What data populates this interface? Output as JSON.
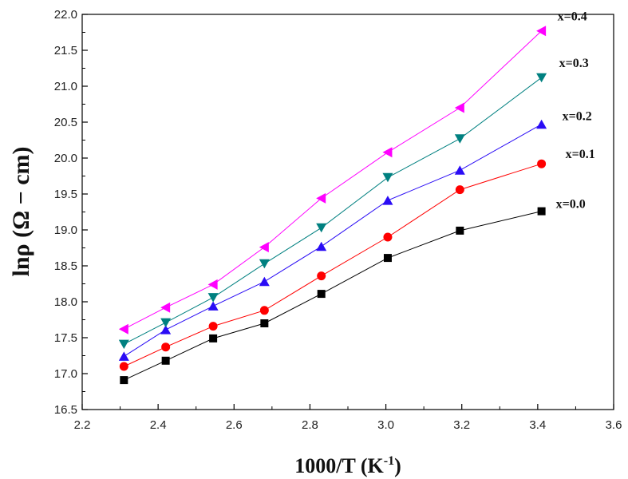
{
  "chart_data": {
    "type": "line",
    "title": "",
    "xlabel": "1000/T (K⁻¹)",
    "xlabel_main": "1000/T (K",
    "xlabel_sup": "-1",
    "xlabel_close": ")",
    "ylabel": "lnρ (Ω − cm)",
    "xlim": [
      2.2,
      3.6
    ],
    "ylim": [
      16.5,
      22.0
    ],
    "x_ticks": [
      "2.2",
      "2.4",
      "2.6",
      "2.8",
      "3.0",
      "3.2",
      "3.4",
      "3.6"
    ],
    "y_ticks": [
      "16.5",
      "17.0",
      "17.5",
      "18.0",
      "18.5",
      "19.0",
      "19.5",
      "20.0",
      "20.5",
      "21.0",
      "21.5",
      "22.0"
    ],
    "x": [
      2.31,
      2.42,
      2.545,
      2.68,
      2.83,
      3.005,
      3.195,
      3.41
    ],
    "series": [
      {
        "name": "x=0.0",
        "marker": "square",
        "color": "#000000",
        "values": [
          16.91,
          17.18,
          17.49,
          17.7,
          18.11,
          18.61,
          18.99,
          19.26
        ]
      },
      {
        "name": "x=0.1",
        "marker": "circle",
        "color": "#ff0000",
        "values": [
          17.1,
          17.37,
          17.66,
          17.88,
          18.36,
          18.9,
          19.56,
          19.92
        ]
      },
      {
        "name": "x=0.2",
        "marker": "triangle-up",
        "color": "#2a0cf5",
        "values": [
          17.24,
          17.61,
          17.94,
          18.28,
          18.77,
          19.41,
          19.83,
          20.47
        ]
      },
      {
        "name": "x=0.3",
        "marker": "triangle-down",
        "color": "#008080",
        "values": [
          17.41,
          17.71,
          18.06,
          18.53,
          19.03,
          19.73,
          20.27,
          21.12
        ]
      },
      {
        "name": "x=0.4",
        "marker": "triangle-left",
        "color": "#ff00ff",
        "values": [
          17.62,
          17.92,
          18.24,
          18.76,
          19.44,
          20.08,
          20.7,
          21.77
        ]
      }
    ],
    "legend_placement": "right, next to series ends",
    "grid": false
  }
}
